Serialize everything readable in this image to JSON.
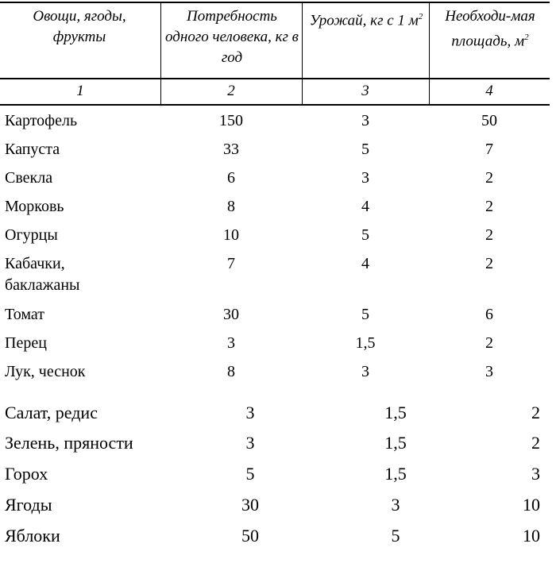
{
  "header": {
    "col1": "Овощи, ягоды, фрукты",
    "col2": "Потребность одного человека, кг в год",
    "col3_text": "Урожай, кг с 1 м",
    "col3_sup": "2",
    "col4_text": "Необходи-мая площадь, м",
    "col4_sup": "2",
    "numbers": [
      "1",
      "2",
      "3",
      "4"
    ]
  },
  "rows": [
    [
      "Картофель",
      "150",
      "3",
      "50"
    ],
    [
      "Капуста",
      "33",
      "5",
      "7"
    ],
    [
      "Свекла",
      "6",
      "3",
      "2"
    ],
    [
      "Морковь",
      "8",
      "4",
      "2"
    ],
    [
      "Огурцы",
      "10",
      "5",
      "2"
    ],
    [
      "Кабачки, баклажаны",
      "7",
      "4",
      "2"
    ],
    [
      "Томат",
      "30",
      "5",
      "6"
    ],
    [
      "Перец",
      "3",
      "1,5",
      "2"
    ],
    [
      "Лук, чеснок",
      "8",
      "3",
      "3"
    ]
  ],
  "rows2": [
    [
      "Салат, редис",
      "3",
      "1,5",
      "2"
    ],
    [
      "Зелень, пряности",
      "3",
      "1,5",
      "2"
    ],
    [
      "Горох",
      "5",
      "1,5",
      "3"
    ],
    [
      "Ягоды",
      "30",
      "3",
      "10"
    ],
    [
      "Яблоки",
      "50",
      "5",
      "10"
    ]
  ]
}
